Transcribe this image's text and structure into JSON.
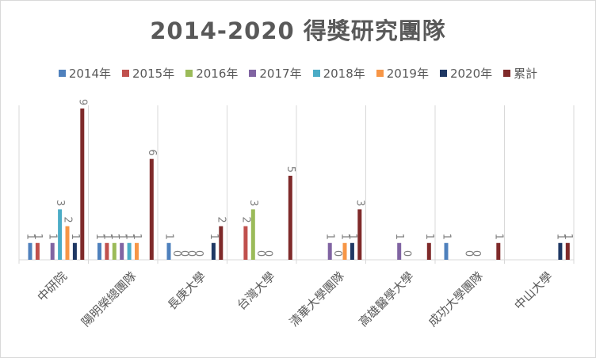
{
  "chart_data": {
    "type": "bar",
    "title": "2014-2020 得獎研究團隊",
    "categories": [
      "中研院",
      "陽明榮總團隊",
      "長庚大學",
      "台灣大學",
      "清華大學團隊",
      "高雄醫學大學",
      "成功大學團隊",
      "中山大學"
    ],
    "series": [
      {
        "name": "2014年",
        "color": "#4f81bd",
        "values": [
          1,
          1,
          1,
          null,
          null,
          null,
          1,
          null
        ],
        "labels": [
          "1",
          "1",
          "1",
          "",
          "",
          "",
          "1",
          ""
        ]
      },
      {
        "name": "2015年",
        "color": "#c0504d",
        "values": [
          1,
          1,
          0,
          2,
          null,
          null,
          null,
          null
        ],
        "labels": [
          "1",
          "1",
          "0",
          "2",
          "",
          "",
          "",
          ""
        ]
      },
      {
        "name": "2016年",
        "color": "#9bbb59",
        "values": [
          null,
          1,
          0,
          3,
          null,
          null,
          null,
          null
        ],
        "labels": [
          "",
          "1",
          "0",
          "3",
          "",
          "",
          "",
          ""
        ]
      },
      {
        "name": "2017年",
        "color": "#8064a2",
        "values": [
          1,
          1,
          0,
          0,
          1,
          1,
          0,
          null
        ],
        "labels": [
          "1",
          "1",
          "0",
          "0",
          "1",
          "1",
          "0",
          ""
        ]
      },
      {
        "name": "2018年",
        "color": "#4bacc6",
        "values": [
          3,
          1,
          0,
          0,
          0,
          0,
          0,
          null
        ],
        "labels": [
          "3",
          "1",
          "0",
          "0",
          "0",
          "0",
          "0",
          ""
        ]
      },
      {
        "name": "2019年",
        "color": "#f79646",
        "values": [
          2,
          1,
          null,
          null,
          1,
          null,
          null,
          null
        ],
        "labels": [
          "2",
          "1",
          "",
          "",
          "1",
          "",
          "",
          ""
        ]
      },
      {
        "name": "2020年",
        "color": "#1f3864",
        "values": [
          1,
          null,
          1,
          null,
          1,
          null,
          null,
          1
        ],
        "labels": [
          "1",
          "",
          "1",
          "",
          "1",
          "",
          "",
          "1"
        ]
      },
      {
        "name": "累計",
        "color": "#7f2a2a",
        "values": [
          9,
          6,
          2,
          5,
          3,
          1,
          1,
          1
        ],
        "labels": [
          "9",
          "6",
          "2",
          "5",
          "3",
          "1",
          "1",
          "1"
        ]
      }
    ],
    "ylim": [
      0,
      9
    ],
    "grid": false,
    "legend_position": "top",
    "colors": {
      "text": "#595959",
      "axis": "#d9d9d9",
      "label": "#7f7f7f"
    }
  }
}
